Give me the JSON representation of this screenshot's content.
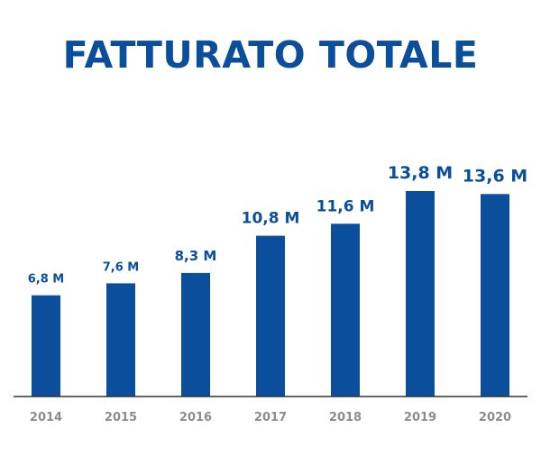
{
  "title": "FATTURATO TOTALE",
  "colors": {
    "bar": "#0b4f9c",
    "title": "#0b4f9c",
    "axis": "#333333",
    "tick_label": "#8c8c8c"
  },
  "chart_data": {
    "type": "bar",
    "title": "FATTURATO TOTALE",
    "categories": [
      "2014",
      "2015",
      "2016",
      "2017",
      "2018",
      "2019",
      "2020"
    ],
    "values": [
      6.8,
      7.6,
      8.3,
      10.8,
      11.6,
      13.8,
      13.6
    ],
    "value_labels": [
      "6,8 M",
      "7,6 M",
      "8,3 M",
      "10,8 M",
      "11,6 M",
      "13,8 M",
      "13,6 M"
    ],
    "unit": "M",
    "xlabel": "",
    "ylabel": "",
    "ylim": [
      0,
      13.8
    ],
    "grid": false,
    "legend": "none"
  }
}
